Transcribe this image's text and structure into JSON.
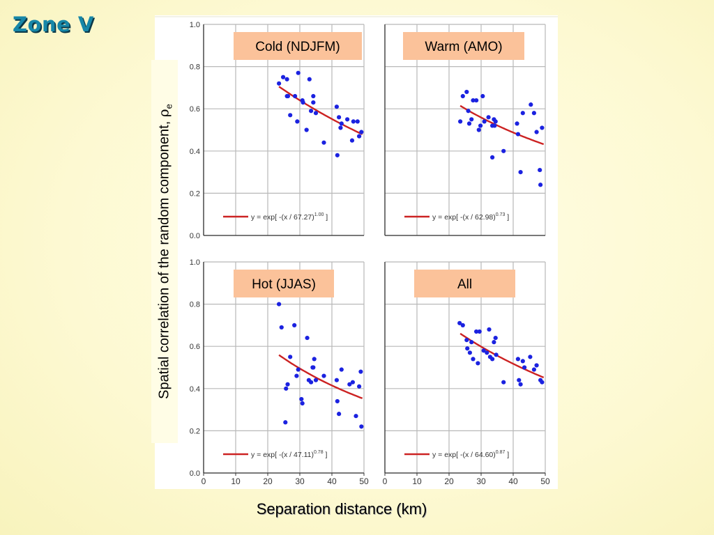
{
  "title": "Zone V",
  "ylabel_main": "Spatial correlation of the random component, ",
  "ylabel_symbol": "ρ",
  "ylabel_sub": "e",
  "xlabel_main": "Separation distance (km)",
  "colors": {
    "point": "#1b22e0",
    "fit": "#cc2222",
    "title_box": "#fbc29a",
    "grid": "#b8b8b8"
  },
  "chart_data": [
    {
      "type": "scatter",
      "title": "Cold (NDJFM)",
      "xlim": [
        0,
        50
      ],
      "ylim": [
        0,
        1
      ],
      "xticks": [
        0,
        10,
        20,
        30,
        40,
        50
      ],
      "yticks": [
        "0.0",
        "0.2",
        "0.4",
        "0.6",
        "0.8",
        "1.0"
      ],
      "show_xticks": false,
      "show_yticks": true,
      "fit": {
        "lambda": 67.27,
        "exponent": 1.0,
        "x_range": [
          23.5,
          49.5
        ]
      },
      "legend": {
        "lead": "y = exp[ -(x / 67.27)",
        "exp": "1.00",
        "tail": " ]"
      },
      "points": [
        [
          23.5,
          0.72
        ],
        [
          24.8,
          0.75
        ],
        [
          26,
          0.66
        ],
        [
          26,
          0.74
        ],
        [
          26.3,
          0.66
        ],
        [
          27,
          0.57
        ],
        [
          28.5,
          0.66
        ],
        [
          29.2,
          0.54
        ],
        [
          29.5,
          0.77
        ],
        [
          30.8,
          0.64
        ],
        [
          31,
          0.63
        ],
        [
          32.1,
          0.5
        ],
        [
          33,
          0.74
        ],
        [
          33.5,
          0.59
        ],
        [
          34.2,
          0.66
        ],
        [
          34.2,
          0.63
        ],
        [
          35,
          0.58
        ],
        [
          37.5,
          0.44
        ],
        [
          41.5,
          0.61
        ],
        [
          41.7,
          0.38
        ],
        [
          42.2,
          0.56
        ],
        [
          42.7,
          0.51
        ],
        [
          43,
          0.53
        ],
        [
          44.8,
          0.55
        ],
        [
          46.3,
          0.45
        ],
        [
          46.7,
          0.54
        ],
        [
          48,
          0.54
        ],
        [
          48.5,
          0.47
        ],
        [
          49.2,
          0.49
        ]
      ]
    },
    {
      "type": "scatter",
      "title": "Warm (AMO)",
      "xlim": [
        0,
        50
      ],
      "ylim": [
        0,
        1
      ],
      "xticks": [
        0,
        10,
        20,
        30,
        40,
        50
      ],
      "yticks": [
        "0.0",
        "0.2",
        "0.4",
        "0.6",
        "0.8",
        "1.0"
      ],
      "show_xticks": false,
      "show_yticks": false,
      "fit": {
        "lambda": 62.98,
        "exponent": 0.73,
        "x_range": [
          23.5,
          49.5
        ]
      },
      "legend": {
        "lead": "y = exp[ -(x / 62.98)",
        "exp": "0.73",
        "tail": " ]"
      },
      "points": [
        [
          23.5,
          0.54
        ],
        [
          24.3,
          0.66
        ],
        [
          25.5,
          0.68
        ],
        [
          26,
          0.59
        ],
        [
          26.3,
          0.53
        ],
        [
          27,
          0.55
        ],
        [
          27.5,
          0.64
        ],
        [
          28.5,
          0.64
        ],
        [
          29.3,
          0.5
        ],
        [
          29.8,
          0.52
        ],
        [
          30.5,
          0.66
        ],
        [
          31,
          0.54
        ],
        [
          32.3,
          0.56
        ],
        [
          33.5,
          0.52
        ],
        [
          33.5,
          0.37
        ],
        [
          34,
          0.55
        ],
        [
          34.2,
          0.52
        ],
        [
          34.5,
          0.54
        ],
        [
          37,
          0.4
        ],
        [
          41.2,
          0.53
        ],
        [
          41.5,
          0.48
        ],
        [
          42.3,
          0.3
        ],
        [
          43,
          0.58
        ],
        [
          45.5,
          0.62
        ],
        [
          46.5,
          0.58
        ],
        [
          47.3,
          0.49
        ],
        [
          48.3,
          0.31
        ],
        [
          48.5,
          0.24
        ],
        [
          49,
          0.51
        ]
      ]
    },
    {
      "type": "scatter",
      "title": "Hot (JJAS)",
      "xlim": [
        0,
        50
      ],
      "ylim": [
        0,
        1
      ],
      "xticks": [
        0,
        10,
        20,
        30,
        40,
        50
      ],
      "yticks": [
        "0.0",
        "0.2",
        "0.4",
        "0.6",
        "0.8",
        "1.0"
      ],
      "show_xticks": true,
      "show_yticks": true,
      "fit": {
        "lambda": 47.11,
        "exponent": 0.78,
        "x_range": [
          23.5,
          49.5
        ]
      },
      "legend": {
        "lead": "y = exp[ -(x / 47.11)",
        "exp": "0.78",
        "tail": " ]"
      },
      "points": [
        [
          23.5,
          0.8
        ],
        [
          24.3,
          0.69
        ],
        [
          25.5,
          0.24
        ],
        [
          25.7,
          0.4
        ],
        [
          26.2,
          0.42
        ],
        [
          27,
          0.55
        ],
        [
          28.3,
          0.7
        ],
        [
          29,
          0.46
        ],
        [
          29.5,
          0.49
        ],
        [
          30.5,
          0.35
        ],
        [
          30.8,
          0.33
        ],
        [
          32.3,
          0.64
        ],
        [
          32.8,
          0.44
        ],
        [
          33.5,
          0.43
        ],
        [
          34,
          0.5
        ],
        [
          34.2,
          0.5
        ],
        [
          34.5,
          0.54
        ],
        [
          35,
          0.44
        ],
        [
          37.5,
          0.46
        ],
        [
          41.5,
          0.44
        ],
        [
          41.7,
          0.34
        ],
        [
          42.2,
          0.28
        ],
        [
          43,
          0.49
        ],
        [
          45.5,
          0.42
        ],
        [
          46.5,
          0.43
        ],
        [
          47.5,
          0.27
        ],
        [
          48.5,
          0.41
        ],
        [
          49,
          0.48
        ],
        [
          49.2,
          0.22
        ]
      ]
    },
    {
      "type": "scatter",
      "title": "All",
      "xlim": [
        0,
        50
      ],
      "ylim": [
        0,
        1
      ],
      "xticks": [
        0,
        10,
        20,
        30,
        40,
        50
      ],
      "yticks": [
        "0.0",
        "0.2",
        "0.4",
        "0.6",
        "0.8",
        "1.0"
      ],
      "show_xticks": true,
      "show_yticks": false,
      "fit": {
        "lambda": 64.6,
        "exponent": 0.87,
        "x_range": [
          23.5,
          49.5
        ]
      },
      "legend": {
        "lead": "y = exp[ -(x / 64.60)",
        "exp": "0.87",
        "tail": " ]"
      },
      "points": [
        [
          23.3,
          0.71
        ],
        [
          24.3,
          0.7
        ],
        [
          25.5,
          0.63
        ],
        [
          25.7,
          0.59
        ],
        [
          26.5,
          0.57
        ],
        [
          27,
          0.62
        ],
        [
          27.5,
          0.54
        ],
        [
          28.5,
          0.67
        ],
        [
          29,
          0.52
        ],
        [
          29.5,
          0.67
        ],
        [
          30.8,
          0.58
        ],
        [
          31.8,
          0.57
        ],
        [
          32.5,
          0.68
        ],
        [
          32.8,
          0.55
        ],
        [
          33.5,
          0.54
        ],
        [
          34,
          0.62
        ],
        [
          34.5,
          0.64
        ],
        [
          34.7,
          0.56
        ],
        [
          37,
          0.43
        ],
        [
          41.5,
          0.54
        ],
        [
          41.8,
          0.44
        ],
        [
          42.3,
          0.42
        ],
        [
          43,
          0.53
        ],
        [
          43.5,
          0.5
        ],
        [
          45.3,
          0.55
        ],
        [
          46.5,
          0.49
        ],
        [
          47.3,
          0.51
        ],
        [
          48.5,
          0.44
        ],
        [
          49,
          0.43
        ]
      ]
    }
  ]
}
